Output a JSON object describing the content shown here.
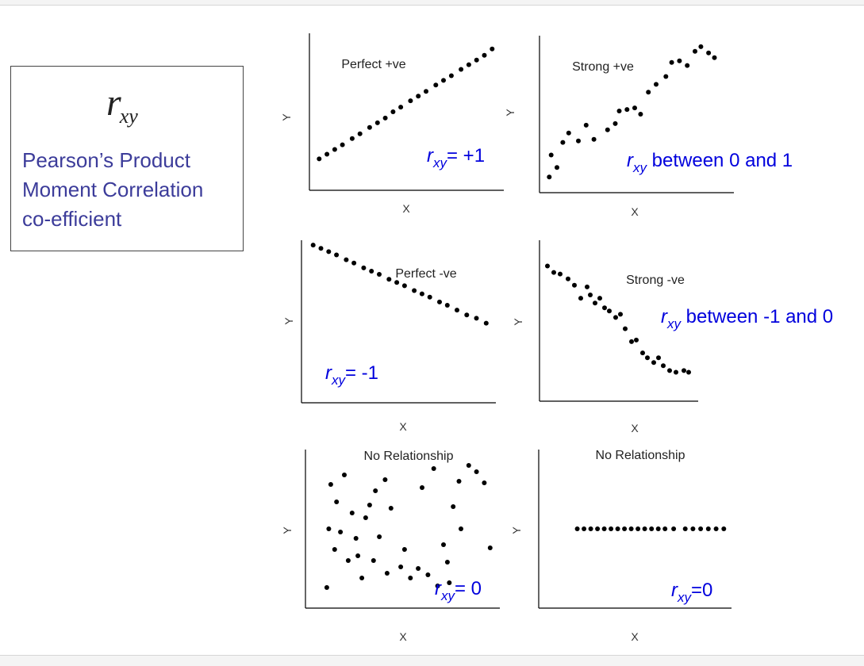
{
  "definition": {
    "symbol_r": "r",
    "symbol_sub": "xy",
    "line1": "Pearson’s Product",
    "line2": "Moment Correlation",
    "line3": "co-efficient"
  },
  "colors": {
    "annotation": "#0000dd",
    "definition_text": "#3c3c9a",
    "points": "#000000"
  },
  "chart_data": [
    {
      "type": "scatter",
      "title": "Perfect +ve",
      "xlabel": "X",
      "ylabel": "Y",
      "annotation": {
        "r": "r",
        "sub": "xy",
        "text": "= +1"
      },
      "xlim": [
        0,
        10
      ],
      "ylim": [
        0,
        10
      ],
      "points": [
        [
          0.5,
          2.0
        ],
        [
          0.9,
          2.3
        ],
        [
          1.3,
          2.6
        ],
        [
          1.7,
          2.9
        ],
        [
          2.2,
          3.3
        ],
        [
          2.6,
          3.6
        ],
        [
          3.1,
          4.0
        ],
        [
          3.5,
          4.3
        ],
        [
          3.9,
          4.6
        ],
        [
          4.3,
          5.0
        ],
        [
          4.7,
          5.3
        ],
        [
          5.2,
          5.7
        ],
        [
          5.6,
          6.0
        ],
        [
          6.0,
          6.3
        ],
        [
          6.5,
          6.7
        ],
        [
          6.9,
          7.0
        ],
        [
          7.3,
          7.3
        ],
        [
          7.8,
          7.7
        ],
        [
          8.2,
          8.0
        ],
        [
          8.6,
          8.3
        ],
        [
          9.0,
          8.6
        ],
        [
          9.4,
          9.0
        ]
      ]
    },
    {
      "type": "scatter",
      "title": "Strong +ve",
      "xlabel": "X",
      "ylabel": "Y",
      "annotation": {
        "r": "r",
        "sub": "xy",
        "text": " between 0 and 1"
      },
      "xlim": [
        0,
        10
      ],
      "ylim": [
        0,
        10
      ],
      "points": [
        [
          0.5,
          1.0
        ],
        [
          0.9,
          1.6
        ],
        [
          0.6,
          2.4
        ],
        [
          1.2,
          3.2
        ],
        [
          1.5,
          3.8
        ],
        [
          2.0,
          3.3
        ],
        [
          2.4,
          4.3
        ],
        [
          2.8,
          3.4
        ],
        [
          3.5,
          4.0
        ],
        [
          3.9,
          4.4
        ],
        [
          4.1,
          5.2
        ],
        [
          4.5,
          5.3
        ],
        [
          4.9,
          5.4
        ],
        [
          5.2,
          5.0
        ],
        [
          5.6,
          6.4
        ],
        [
          6.0,
          6.9
        ],
        [
          6.5,
          7.4
        ],
        [
          6.8,
          8.3
        ],
        [
          7.2,
          8.4
        ],
        [
          7.6,
          8.1
        ],
        [
          8.0,
          9.0
        ],
        [
          8.3,
          9.3
        ],
        [
          8.7,
          8.9
        ],
        [
          9.0,
          8.6
        ]
      ]
    },
    {
      "type": "scatter",
      "title": "Perfect -ve",
      "xlabel": "X",
      "ylabel": "Y",
      "annotation": {
        "r": "r",
        "sub": "xy",
        "text": "= -1"
      },
      "xlim": [
        0,
        10
      ],
      "ylim": [
        0,
        10
      ],
      "points": [
        [
          0.6,
          9.7
        ],
        [
          1.0,
          9.5
        ],
        [
          1.4,
          9.3
        ],
        [
          1.8,
          9.1
        ],
        [
          2.3,
          8.8
        ],
        [
          2.7,
          8.6
        ],
        [
          3.2,
          8.3
        ],
        [
          3.6,
          8.1
        ],
        [
          4.0,
          7.9
        ],
        [
          4.5,
          7.6
        ],
        [
          4.9,
          7.4
        ],
        [
          5.3,
          7.2
        ],
        [
          5.8,
          6.9
        ],
        [
          6.2,
          6.7
        ],
        [
          6.6,
          6.5
        ],
        [
          7.1,
          6.2
        ],
        [
          7.5,
          6.0
        ],
        [
          8.0,
          5.7
        ],
        [
          8.5,
          5.4
        ],
        [
          9.0,
          5.2
        ],
        [
          9.5,
          4.9
        ]
      ]
    },
    {
      "type": "scatter",
      "title": "Strong -ve",
      "xlabel": "X",
      "ylabel": "Y",
      "annotation": {
        "r": "r",
        "sub": "xy",
        "text": " between -1 and 0"
      },
      "xlim": [
        0,
        10
      ],
      "ylim": [
        0,
        10
      ],
      "points": [
        [
          0.5,
          8.4
        ],
        [
          0.9,
          8.0
        ],
        [
          1.3,
          7.9
        ],
        [
          1.8,
          7.6
        ],
        [
          2.2,
          7.2
        ],
        [
          2.6,
          6.4
        ],
        [
          3.0,
          7.1
        ],
        [
          3.2,
          6.6
        ],
        [
          3.5,
          6.1
        ],
        [
          3.8,
          6.4
        ],
        [
          4.1,
          5.8
        ],
        [
          4.4,
          5.6
        ],
        [
          4.8,
          5.2
        ],
        [
          5.1,
          5.4
        ],
        [
          5.4,
          4.5
        ],
        [
          5.8,
          3.7
        ],
        [
          6.1,
          3.8
        ],
        [
          6.5,
          3.0
        ],
        [
          6.8,
          2.7
        ],
        [
          7.2,
          2.4
        ],
        [
          7.5,
          2.7
        ],
        [
          7.8,
          2.2
        ],
        [
          8.2,
          1.9
        ],
        [
          8.6,
          1.8
        ],
        [
          9.1,
          1.9
        ],
        [
          9.4,
          1.8
        ]
      ]
    },
    {
      "type": "scatter",
      "title": "No Relationship",
      "xlabel": "X",
      "ylabel": "Y",
      "annotation": {
        "r": "r",
        "sub": "xy",
        "text": "= 0"
      },
      "xlim": [
        0,
        10
      ],
      "ylim": [
        0,
        10
      ],
      "points": [
        [
          1.3,
          7.8
        ],
        [
          1.6,
          6.7
        ],
        [
          2.0,
          8.4
        ],
        [
          2.4,
          6.0
        ],
        [
          1.2,
          5.0
        ],
        [
          1.5,
          3.7
        ],
        [
          2.6,
          4.4
        ],
        [
          3.1,
          5.7
        ],
        [
          3.6,
          7.4
        ],
        [
          4.1,
          8.1
        ],
        [
          4.4,
          6.3
        ],
        [
          3.8,
          4.5
        ],
        [
          3.5,
          3.0
        ],
        [
          4.2,
          2.2
        ],
        [
          4.9,
          2.6
        ],
        [
          5.4,
          1.9
        ],
        [
          5.8,
          2.5
        ],
        [
          6.3,
          2.1
        ],
        [
          6.8,
          1.4
        ],
        [
          7.1,
          4.0
        ],
        [
          7.6,
          6.4
        ],
        [
          7.9,
          8.0
        ],
        [
          8.4,
          9.0
        ],
        [
          8.8,
          8.6
        ],
        [
          9.2,
          7.9
        ],
        [
          7.4,
          1.6
        ],
        [
          2.9,
          1.9
        ],
        [
          1.1,
          1.3
        ],
        [
          2.2,
          3.0
        ],
        [
          3.3,
          6.5
        ],
        [
          6.0,
          7.6
        ],
        [
          6.6,
          8.8
        ],
        [
          7.3,
          2.9
        ],
        [
          8.0,
          5.0
        ],
        [
          9.5,
          3.8
        ],
        [
          5.1,
          3.7
        ],
        [
          1.8,
          4.8
        ],
        [
          2.7,
          3.3
        ]
      ]
    },
    {
      "type": "scatter",
      "title": "No Relationship",
      "xlabel": "X",
      "ylabel": "Y",
      "annotation": {
        "r": "r",
        "sub": "xy",
        "text": "=0"
      },
      "xlim": [
        0,
        10
      ],
      "ylim": [
        0,
        10
      ],
      "points": [
        [
          2.0,
          5.0
        ],
        [
          2.35,
          5.0
        ],
        [
          2.7,
          5.0
        ],
        [
          3.05,
          5.0
        ],
        [
          3.4,
          5.0
        ],
        [
          3.75,
          5.0
        ],
        [
          4.1,
          5.0
        ],
        [
          4.45,
          5.0
        ],
        [
          4.8,
          5.0
        ],
        [
          5.15,
          5.0
        ],
        [
          5.5,
          5.0
        ],
        [
          5.85,
          5.0
        ],
        [
          6.2,
          5.0
        ],
        [
          6.55,
          5.0
        ],
        [
          7.0,
          5.0
        ],
        [
          7.6,
          5.0
        ],
        [
          8.0,
          5.0
        ],
        [
          8.4,
          5.0
        ],
        [
          8.8,
          5.0
        ],
        [
          9.2,
          5.0
        ],
        [
          9.6,
          5.0
        ]
      ]
    }
  ]
}
